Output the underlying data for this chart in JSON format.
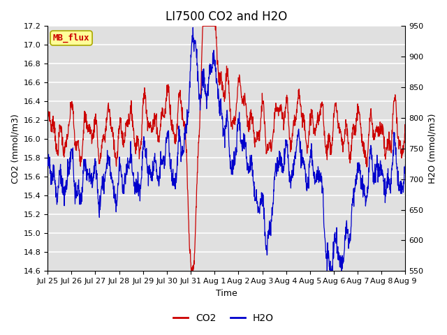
{
  "title": "LI7500 CO2 and H2O",
  "xlabel": "Time",
  "ylabel_left": "CO2 (mmol/m3)",
  "ylabel_right": "H2O (mmol/m3)",
  "ylim_left": [
    14.6,
    17.2
  ],
  "ylim_right": [
    550,
    950
  ],
  "co2_color": "#cc0000",
  "h2o_color": "#0000cc",
  "background_color": "#ffffff",
  "plot_bg_color": "#e0e0e0",
  "grid_color": "#ffffff",
  "annotation_text": "MB_flux",
  "annotation_bg": "#ffff99",
  "annotation_border": "#aaa800",
  "annotation_color": "#cc0000",
  "x_tick_labels": [
    "Jul 25",
    "Jul 26",
    "Jul 27",
    "Jul 28",
    "Jul 29",
    "Jul 30",
    "Jul 31",
    "Aug 1",
    "Aug 2",
    "Aug 3",
    "Aug 4",
    "Aug 5",
    "Aug 6",
    "Aug 7",
    "Aug 8",
    "Aug 9"
  ],
  "n_points": 1500,
  "title_fontsize": 12,
  "axis_fontsize": 9,
  "tick_fontsize": 8,
  "legend_fontsize": 10
}
